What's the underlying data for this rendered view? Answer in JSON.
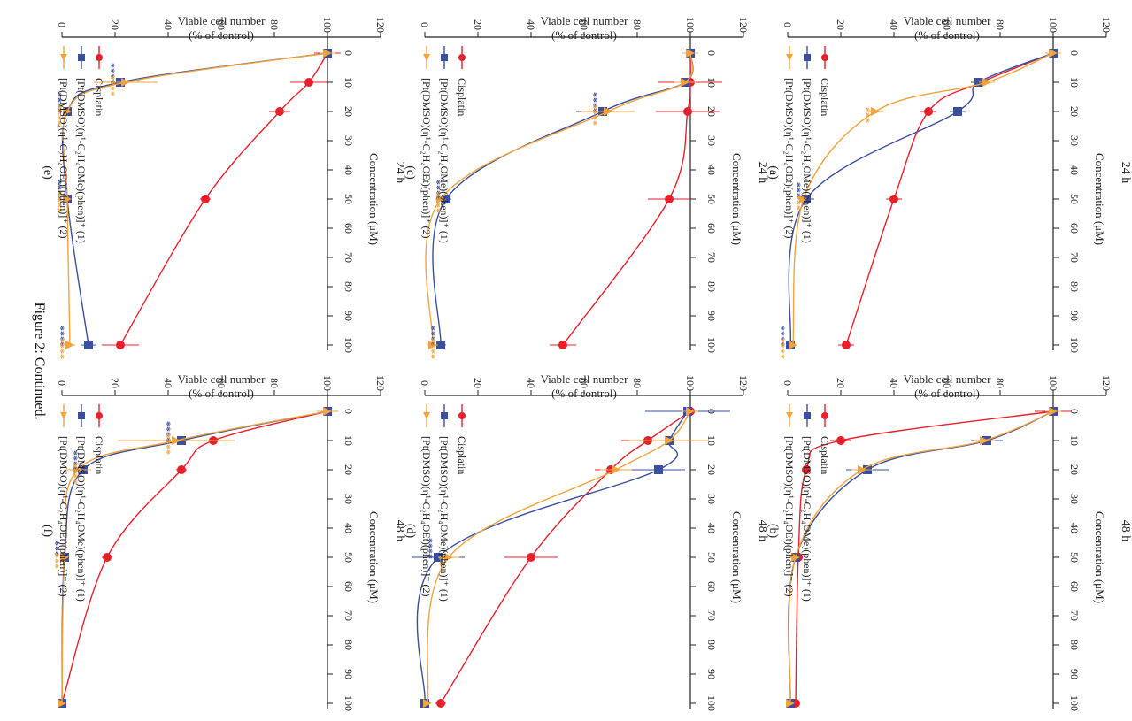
{
  "figure": {
    "caption": "Figure 2: Continued.",
    "panels_order": [
      "a",
      "b",
      "c",
      "d",
      "e",
      "f"
    ]
  },
  "colors": {
    "cisplatin": "#e8202b",
    "complex1": "#3a4fa0",
    "complex2": "#f2a33a",
    "axis": "#222222",
    "text": "#222222"
  },
  "legend": {
    "cisplatin": "Cisplatin",
    "complex1": "[Pt(DMSO)(η¹-C₂H₄OMe)(phen)]⁺ (1)",
    "complex2": "[Pt(DMSO)(η¹-C₂H₄OEt)(phen)]⁺ (2)"
  },
  "chart_data": [
    {
      "type": "line",
      "panel": "a",
      "label": "(a)",
      "title": "24 h",
      "xlabel": "Concentration (μM)",
      "ylabel": "Viable cell number",
      "ylabel2": "(% of control)",
      "x": [
        0,
        10,
        20,
        50,
        100
      ],
      "xticks": [
        0,
        10,
        20,
        30,
        40,
        50,
        60,
        70,
        80,
        90,
        100
      ],
      "yticks": [
        0,
        20,
        40,
        60,
        80,
        100,
        120
      ],
      "xlim": [
        0,
        100
      ],
      "ylim": [
        0,
        120
      ],
      "series": [
        {
          "name": "Cisplatin",
          "key": "cisplatin",
          "marker": "circle",
          "values": [
            100,
            73,
            53,
            40,
            22
          ],
          "errors": [
            3,
            3,
            3,
            3,
            3
          ]
        },
        {
          "name": "[Pt(DMSO)(η¹-C₂H₄OMe)(phen)]⁺ (1)",
          "key": "complex1",
          "marker": "square",
          "values": [
            100,
            72,
            64,
            7,
            1
          ],
          "errors": [
            3,
            3,
            3,
            3,
            1
          ]
        },
        {
          "name": "[Pt(DMSO)(η¹-C₂H₄OEt)(phen)]⁺ (2)",
          "key": "complex2",
          "marker": "triangle",
          "values": [
            100,
            75,
            33,
            6,
            2
          ],
          "errors": [
            3,
            3,
            3,
            1,
            1
          ]
        }
      ],
      "annotations": [
        {
          "x": 20,
          "y": 33,
          "text": "***",
          "key": "complex2"
        },
        {
          "x": 50,
          "y": 7,
          "text": "***",
          "key": "complex1"
        },
        {
          "x": 50,
          "y": 7,
          "text": "***",
          "key": "complex2"
        },
        {
          "x": 100,
          "y": 1,
          "text": "****",
          "key": "complex1"
        },
        {
          "x": 100,
          "y": 1,
          "text": "****",
          "key": "complex2"
        }
      ]
    },
    {
      "type": "line",
      "panel": "b",
      "label": "(b)",
      "title": "48 h",
      "xlabel": "Concentration (μM)",
      "ylabel": "Viable cell number",
      "ylabel2": "(% of control)",
      "x": [
        0,
        10,
        20,
        50,
        100
      ],
      "xticks": [
        0,
        10,
        20,
        30,
        40,
        50,
        60,
        70,
        80,
        90,
        100
      ],
      "yticks": [
        0,
        20,
        40,
        60,
        80,
        100,
        120
      ],
      "xlim": [
        0,
        100
      ],
      "ylim": [
        0,
        120
      ],
      "series": [
        {
          "name": "Cisplatin",
          "key": "cisplatin",
          "marker": "circle",
          "values": [
            100,
            20,
            7,
            4,
            3
          ],
          "errors": [
            7,
            4,
            1,
            1,
            1
          ]
        },
        {
          "name": "[Pt(DMSO)(η¹-C₂H₄OMe)(phen)]⁺ (1)",
          "key": "complex1",
          "marker": "square",
          "values": [
            100,
            75,
            30,
            3,
            1
          ],
          "errors": [
            3,
            6,
            8,
            1,
            1
          ]
        },
        {
          "name": "[Pt(DMSO)(η¹-C₂H₄OEt)(phen)]⁺ (2)",
          "key": "complex2",
          "marker": "triangle",
          "values": [
            100,
            74,
            28,
            3,
            1
          ],
          "errors": [
            3,
            4,
            4,
            1,
            1
          ]
        }
      ],
      "annotations": []
    },
    {
      "type": "line",
      "panel": "c",
      "label": "(c)",
      "title": "24 h",
      "xlabel": "Concentration (μM)",
      "ylabel": "Viable cell number",
      "ylabel2": "(% of control)",
      "x": [
        0,
        10,
        20,
        50,
        100
      ],
      "xticks": [
        0,
        10,
        20,
        30,
        40,
        50,
        60,
        70,
        80,
        90,
        100
      ],
      "yticks": [
        0,
        20,
        40,
        60,
        80,
        100,
        120
      ],
      "xlim": [
        0,
        100
      ],
      "ylim": [
        0,
        120
      ],
      "series": [
        {
          "name": "Cisplatin",
          "key": "cisplatin",
          "marker": "circle",
          "values": [
            100,
            100,
            99,
            92,
            52
          ],
          "errors": [
            3,
            12,
            12,
            8,
            5
          ]
        },
        {
          "name": "[Pt(DMSO)(η¹-C₂H₄OMe)(phen)]⁺ (1)",
          "key": "complex1",
          "marker": "square",
          "values": [
            100,
            98,
            67,
            8,
            6
          ],
          "errors": [
            3,
            4,
            10,
            2,
            2
          ]
        },
        {
          "name": "[Pt(DMSO)(η¹-C₂H₄OEt)(phen)]⁺ (2)",
          "key": "complex2",
          "marker": "triangle",
          "values": [
            100,
            98,
            69,
            6,
            3
          ],
          "errors": [
            3,
            4,
            10,
            2,
            2
          ]
        }
      ],
      "annotations": [
        {
          "x": 20,
          "y": 67,
          "text": "****",
          "key": "complex1"
        },
        {
          "x": 20,
          "y": 67,
          "text": "****",
          "key": "complex2"
        },
        {
          "x": 50,
          "y": 8,
          "text": "****",
          "key": "complex1"
        },
        {
          "x": 50,
          "y": 8,
          "text": "****",
          "key": "complex2"
        },
        {
          "x": 100,
          "y": 6,
          "text": "****",
          "key": "complex1"
        },
        {
          "x": 100,
          "y": 6,
          "text": "****",
          "key": "complex2"
        }
      ]
    },
    {
      "type": "line",
      "panel": "d",
      "label": "(d)",
      "title": "48 h",
      "xlabel": "Concentration (μM)",
      "ylabel": "Viable cell number",
      "ylabel2": "(% of control)",
      "x": [
        0,
        10,
        20,
        50,
        100
      ],
      "xticks": [
        0,
        10,
        20,
        30,
        40,
        50,
        60,
        70,
        80,
        90,
        100
      ],
      "yticks": [
        0,
        20,
        40,
        60,
        80,
        100,
        120
      ],
      "xlim": [
        0,
        100
      ],
      "ylim": [
        0,
        120
      ],
      "series": [
        {
          "name": "Cisplatin",
          "key": "cisplatin",
          "marker": "circle",
          "values": [
            100,
            84,
            70,
            40,
            6
          ],
          "errors": [
            3,
            10,
            6,
            10,
            2
          ]
        },
        {
          "name": "[Pt(DMSO)(η¹-C₂H₄OMe)(phen)]⁺ (1)",
          "key": "complex1",
          "marker": "square",
          "values": [
            99,
            92,
            88,
            5,
            0
          ],
          "errors": [
            16,
            6,
            10,
            10,
            1
          ]
        },
        {
          "name": "[Pt(DMSO)(η¹-C₂H₄OEt)(phen)]⁺ (2)",
          "key": "complex2",
          "marker": "triangle",
          "values": [
            100,
            92,
            72,
            9,
            1
          ],
          "errors": [
            3,
            15,
            6,
            4,
            1
          ]
        }
      ],
      "annotations": [
        {
          "x": 50,
          "y": 5,
          "text": "****",
          "key": "complex1"
        },
        {
          "x": 50,
          "y": 9,
          "text": "**",
          "key": "complex2"
        }
      ]
    },
    {
      "type": "line",
      "panel": "e",
      "label": "(e)",
      "title": "24 h",
      "xlabel": "Concentration (μM)",
      "ylabel": "Viable cell number",
      "ylabel2": "(% of control)",
      "x": [
        0,
        10,
        20,
        50,
        100
      ],
      "xticks": [
        0,
        10,
        20,
        30,
        40,
        50,
        60,
        70,
        80,
        90,
        100
      ],
      "yticks": [
        0,
        20,
        40,
        60,
        80,
        100,
        120
      ],
      "xlim": [
        0,
        100
      ],
      "ylim": [
        0,
        120
      ],
      "series": [
        {
          "name": "Cisplatin",
          "key": "cisplatin",
          "marker": "circle",
          "values": [
            100,
            93,
            82,
            54,
            22
          ],
          "errors": [
            5,
            7,
            4,
            2,
            7
          ]
        },
        {
          "name": "[Pt(DMSO)(η¹-C₂H₄OMe)(phen)]⁺ (1)",
          "key": "complex1",
          "marker": "square",
          "values": [
            100,
            22,
            2,
            2,
            10
          ],
          "errors": [
            3,
            3,
            1,
            1,
            3
          ]
        },
        {
          "name": "[Pt(DMSO)(η¹-C₂H₄OEt)(phen)]⁺ (2)",
          "key": "complex2",
          "marker": "triangle",
          "values": [
            100,
            24,
            2,
            2,
            3
          ],
          "errors": [
            3,
            12,
            1,
            1,
            2
          ]
        }
      ],
      "annotations": [
        {
          "x": 10,
          "y": 22,
          "text": "****",
          "key": "complex1"
        },
        {
          "x": 10,
          "y": 22,
          "text": "****",
          "key": "complex2"
        },
        {
          "x": 20,
          "y": 2,
          "text": "****",
          "key": "complex1"
        },
        {
          "x": 20,
          "y": 2,
          "text": "****",
          "key": "complex2"
        },
        {
          "x": 50,
          "y": 2,
          "text": "****",
          "key": "complex1"
        },
        {
          "x": 50,
          "y": 2,
          "text": "****",
          "key": "complex2"
        },
        {
          "x": 100,
          "y": 3,
          "text": "****",
          "key": "complex1"
        },
        {
          "x": 100,
          "y": 3,
          "text": "****",
          "key": "complex2"
        }
      ]
    },
    {
      "type": "line",
      "panel": "f",
      "label": "(f)",
      "title": "48 h",
      "xlabel": "Concentration (μM)",
      "ylabel": "Viable cell number",
      "ylabel2": "(% of control)",
      "x": [
        0,
        10,
        20,
        50,
        100
      ],
      "xticks": [
        0,
        10,
        20,
        30,
        40,
        50,
        60,
        70,
        80,
        90,
        100
      ],
      "yticks": [
        0,
        20,
        40,
        60,
        80,
        100,
        120
      ],
      "xlim": [
        0,
        100
      ],
      "ylim": [
        0,
        120
      ],
      "series": [
        {
          "name": "Cisplatin",
          "key": "cisplatin",
          "marker": "circle",
          "values": [
            100,
            57,
            45,
            17,
            0
          ],
          "errors": [
            4,
            3,
            2,
            2,
            1
          ]
        },
        {
          "name": "[Pt(DMSO)(η¹-C₂H₄OMe)(phen)]⁺ (1)",
          "key": "complex1",
          "marker": "square",
          "values": [
            100,
            45,
            8,
            1,
            0
          ],
          "errors": [
            4,
            6,
            2,
            1,
            1
          ]
        },
        {
          "name": "[Pt(DMSO)(η¹-C₂H₄OEt)(phen)]⁺ (2)",
          "key": "complex2",
          "marker": "triangle",
          "values": [
            100,
            43,
            6,
            1,
            0
          ],
          "errors": [
            4,
            22,
            5,
            1,
            1
          ]
        }
      ],
      "annotations": [
        {
          "x": 10,
          "y": 43,
          "text": "****",
          "key": "complex1"
        },
        {
          "x": 10,
          "y": 43,
          "text": "****",
          "key": "complex2"
        },
        {
          "x": 20,
          "y": 8,
          "text": "****",
          "key": "complex1"
        },
        {
          "x": 20,
          "y": 8,
          "text": "****",
          "key": "complex2"
        },
        {
          "x": 50,
          "y": 1,
          "text": "***",
          "key": "complex1"
        },
        {
          "x": 50,
          "y": 1,
          "text": "***",
          "key": "complex2"
        }
      ]
    }
  ]
}
